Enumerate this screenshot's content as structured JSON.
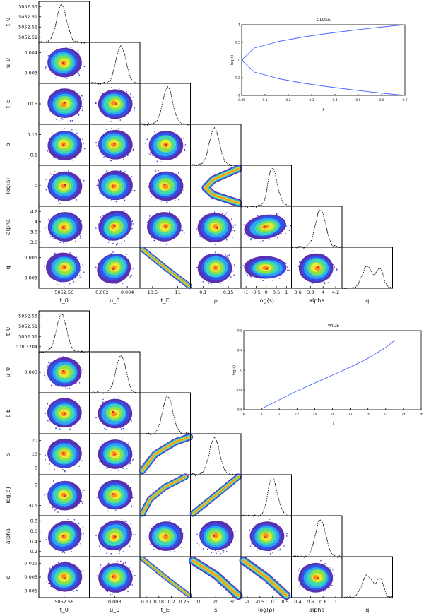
{
  "figures": [
    {
      "id": "close",
      "params": [
        "t_0",
        "u_0",
        "t_E",
        "ρ",
        "log(s)",
        "alpha",
        "q"
      ],
      "y_labels": [
        "t_0",
        "u_0",
        "t_E",
        "ρ",
        "log(s)",
        "alpha",
        "q"
      ],
      "x_labels": [
        "t_0",
        "u_0",
        "t_E",
        "ρ",
        "log(s)",
        "alpha",
        "q"
      ],
      "y_ticks": {
        "t_0": [
          "5052.55",
          "5052.51",
          "5052.51",
          "5052.51"
        ],
        "u_0": [
          "0.004",
          "0.003"
        ],
        "t_E": [
          "10.5"
        ],
        "ρ": [
          "0.15",
          "0.1"
        ],
        "log(s)": [
          "0"
        ],
        "alpha": [
          "4.2",
          "4",
          "3.8",
          "3.6"
        ],
        "q": [
          "0.005",
          "0.003"
        ]
      },
      "x_ticks": {
        "t_0": [
          "5052.56"
        ],
        "u_0": [
          "0.002",
          "0.004"
        ],
        "t_E": [
          "10.5",
          "11"
        ],
        "ρ": [
          "0.1",
          "0.15"
        ],
        "log(s)": [
          "-1",
          "-0.5",
          "0",
          "0.5",
          "1"
        ],
        "alpha": [
          "3.6",
          "3.8",
          "4",
          "4.2"
        ]
      },
      "inset": {
        "title": "CLOSE",
        "ylabel": "log(s)",
        "xlabel": "ρ",
        "x_ticks": [
          "0.05",
          "0.1",
          "0.2",
          "0.3",
          "0.4",
          "0.5",
          "0.6",
          "0.7"
        ],
        "y_ticks": [
          "1",
          "0.5",
          "0",
          "-0.5",
          "-1"
        ]
      }
    },
    {
      "id": "wide",
      "params": [
        "t_0",
        "u_0",
        "t_E",
        "s",
        "log(ρ)",
        "alpha",
        "q"
      ],
      "y_labels": [
        "t_0",
        "u_0",
        "t_E",
        "s",
        "log(ρ)",
        "alpha",
        "q"
      ],
      "x_labels": [
        "t_0",
        "u_0",
        "t_E",
        "s",
        "log(ρ)",
        "alpha",
        "q"
      ],
      "y_ticks": {
        "t_0": [
          "5052.55",
          "5052.51",
          "5052.51",
          "0.003204"
        ],
        "u_0": [
          "0.003"
        ],
        "t_E": [],
        "s": [
          "20",
          "10",
          "0"
        ],
        "log(ρ)": [
          "0",
          "-0.5"
        ],
        "alpha": [
          "0.8",
          "0.6",
          "0.4",
          "0.2"
        ],
        "q": [
          "0.025",
          "0.005",
          "0.005"
        ]
      },
      "x_ticks": {
        "t_0": [
          "5052.56"
        ],
        "u_0": [
          "0.003"
        ],
        "t_E": [
          "0.17",
          "0.18",
          "0.2",
          "0.25"
        ],
        "s": [
          "10",
          "20",
          "30"
        ],
        "log(ρ)": [
          "-1",
          "-0.5",
          "0",
          "0.5"
        ],
        "alpha": [
          "0.4",
          "0.6",
          "0.8",
          "1"
        ]
      },
      "inset": {
        "title": "WIDE",
        "ylabel": "log(s)",
        "xlabel": "s",
        "x_ticks": [
          "6",
          "8",
          "10",
          "12",
          "14",
          "16",
          "18",
          "20",
          "22",
          "24",
          "26"
        ],
        "y_ticks": [
          "0.8",
          "0.4",
          "0",
          "-0.4",
          "-0.8"
        ]
      }
    }
  ],
  "chart_data": [
    {
      "type": "scatter",
      "title": "CLOSE",
      "xlabel": "ρ",
      "ylabel": "log(s)",
      "xlim": [
        0.05,
        0.7
      ],
      "ylim": [
        -1,
        1
      ],
      "grid": false,
      "series": [
        {
          "x": [
            0.7,
            0.6,
            0.5,
            0.4,
            0.3,
            0.2,
            0.1,
            0.05,
            0.1,
            0.2,
            0.3,
            0.4,
            0.5,
            0.6,
            0.7
          ],
          "y": [
            1.0,
            0.93,
            0.85,
            0.76,
            0.66,
            0.53,
            0.34,
            0.0,
            -0.34,
            -0.53,
            -0.66,
            -0.76,
            -0.85,
            -0.93,
            -1.0
          ]
        }
      ]
    },
    {
      "type": "line",
      "title": "WIDE",
      "xlabel": "s",
      "ylabel": "log(s)",
      "xlim": [
        6,
        26
      ],
      "ylim": [
        -0.8,
        0.8
      ],
      "grid": false,
      "series": [
        {
          "x": [
            8,
            10,
            12,
            14,
            16,
            18,
            20,
            22,
            23
          ],
          "y": [
            -0.78,
            -0.6,
            -0.42,
            -0.26,
            -0.1,
            0.06,
            0.24,
            0.46,
            0.6
          ]
        }
      ]
    }
  ]
}
